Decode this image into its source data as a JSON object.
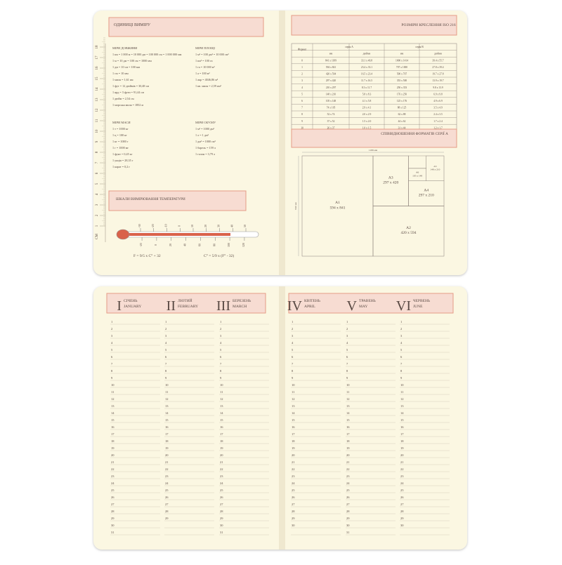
{
  "units": {
    "title": "ОДИНИЦІ ВИМІРУ",
    "sections": [
      {
        "title": "МІРИ ДОВЖИНИ",
        "lines": [
          "1 км = 1 000 м = 10 000 дм = 100 000 см = 1 000 000 мм",
          "1 м = 10 дм = 100 см = 1000 мм",
          "1 дм = 10 см = 100 мм",
          "1 см = 10 мм",
          "1 миля = 1,61 км",
          "1 фут = 12 дюймів = 30,48 см",
          "1 ярд = 3 фути = 91,44 см",
          "1 дюйм = 2,54 см",
          "1 морська миля = 1852 м"
        ]
      },
      {
        "title": "МІРИ ПЛОЩІ",
        "lines": [
          "1 м² = 100 дм² = 10 000 см²",
          "1 км² = 100 га",
          "1 га = 10 000 м²",
          "1 а = 100 м²",
          "1 акр = 4046,86 м²",
          "1 кв. миля = 2,59 км²"
        ]
      },
      {
        "title": "МІРИ МАСИ",
        "lines": [
          "1 т = 1000 кг",
          "1 ц = 100 кг",
          "1 кг = 1000 г",
          "1 г = 1000 мг",
          "1 фунт = 0,45 кг",
          "1 унція = 28,35 г",
          "1 карат = 0,2 г"
        ]
      },
      {
        "title": "МІРИ ОБ'ЄМУ",
        "lines": [
          "1 м³ = 1000 дм³",
          "1 л = 1 дм³",
          "1 дм³ = 1000 см³",
          "1 барель = 159 л",
          "1 галон = 3,79 л"
        ]
      }
    ]
  },
  "ruler": {
    "unit": "CM",
    "numbers": [
      1,
      2,
      3,
      4,
      5,
      6,
      7,
      8,
      9,
      10,
      11,
      12,
      13,
      14,
      15,
      16,
      17,
      18
    ]
  },
  "temperature": {
    "title": "ШКАЛИ ВИМІРЮВАННЯ ТЕМПЕРАТУРИ",
    "celsius": [
      -30,
      -20,
      -10,
      0,
      10,
      20,
      30,
      40,
      50
    ],
    "fahrenheit": [
      -20,
      0,
      20,
      40,
      60,
      80,
      100,
      120
    ],
    "formula_f": "F = 9/5 x C° + 32",
    "formula_c": "C° = 5/9 x (F° - 32)"
  },
  "paper_table": {
    "title": "РОЗМІРИ КРЕСЛЕННЯ ISO 216",
    "header": [
      "Формат",
      "серія A",
      "серія B"
    ],
    "subheader": [
      "мм",
      "дюйми",
      "мм",
      "дюйми"
    ],
    "rows": [
      [
        0,
        "841 x 1189",
        "33.1 x 46.8",
        "1000 x 1414",
        "39.4 x 55.7"
      ],
      [
        1,
        "594 x 841",
        "23.4 x 33.1",
        "707 x 1000",
        "27.8 x 39.4"
      ],
      [
        2,
        "420 x 594",
        "16.5 x 23.4",
        "500 x 707",
        "19.7 x 27.8"
      ],
      [
        3,
        "297 x 420",
        "11.7 x 16.5",
        "353 x 500",
        "13.9 x 19.7"
      ],
      [
        4,
        "210 x 297",
        "8.3 x 11.7",
        "250 x 353",
        "9.8 x 13.9"
      ],
      [
        5,
        "148 x 210",
        "5.8 x 8.3",
        "176 x 250",
        "6.9 x 9.8"
      ],
      [
        6,
        "105 x 148",
        "4.1 x 5.8",
        "125 x 176",
        "4.9 x 6.9"
      ],
      [
        7,
        "74 x 105",
        "2.9 x 4.1",
        "88 x 125",
        "3.5 x 4.9"
      ],
      [
        8,
        "52 x 74",
        "2.0 x 2.9",
        "62 x 88",
        "2.4 x 3.5"
      ],
      [
        9,
        "37 x 52",
        "1.5 x 2.0",
        "44 x 62",
        "1.7 x 2.4"
      ],
      [
        10,
        "26 x 37",
        "1.0 x 1.5",
        "31 x 44",
        "1.2 x 1.7"
      ]
    ]
  },
  "formats": {
    "title": "СПІВВІДНОШЕННЯ ФОРМАТІВ СЕРІЇ A",
    "width_label": "1189 мм",
    "height_label": "841 мм",
    "sheets": [
      {
        "name": "A1",
        "size": "594 x 841"
      },
      {
        "name": "A2",
        "size": "420 x 594"
      },
      {
        "name": "A3",
        "size": "297 x 420"
      },
      {
        "name": "A4",
        "size": "297 x 210"
      },
      {
        "name": "A5",
        "size": "148 x 210"
      },
      {
        "name": "A6",
        "size": "105 x 148"
      }
    ]
  },
  "calendar": {
    "months": [
      {
        "numeral": "I",
        "name": "СІЧЕНЬ",
        "name_en": "JANUARY",
        "days": [
          1,
          2,
          3,
          4,
          5,
          6,
          7,
          8,
          9,
          10,
          11,
          12,
          13,
          14,
          15,
          16,
          17,
          18,
          19,
          20,
          21,
          22,
          23,
          24,
          25,
          26,
          27,
          28,
          29,
          30,
          31
        ]
      },
      {
        "numeral": "II",
        "name": "ЛЮТИЙ",
        "name_en": "FEBRUARY",
        "days": [
          1,
          2,
          3,
          4,
          5,
          6,
          7,
          8,
          9,
          10,
          11,
          12,
          13,
          14,
          15,
          16,
          17,
          18,
          19,
          20,
          21,
          22,
          23,
          24,
          25,
          26,
          27,
          28,
          29
        ]
      },
      {
        "numeral": "III",
        "name": "БЕРЕЗЕНЬ",
        "name_en": "MARCH",
        "days": [
          1,
          2,
          3,
          4,
          5,
          6,
          7,
          8,
          9,
          10,
          11,
          12,
          13,
          14,
          15,
          16,
          17,
          18,
          19,
          20,
          21,
          22,
          23,
          24,
          25,
          26,
          27,
          28,
          29,
          30,
          31
        ]
      },
      {
        "numeral": "IV",
        "name": "КВІТЕНЬ",
        "name_en": "APRIL",
        "days": [
          1,
          2,
          3,
          4,
          5,
          6,
          7,
          8,
          9,
          10,
          11,
          12,
          13,
          14,
          15,
          16,
          17,
          18,
          19,
          20,
          21,
          22,
          23,
          24,
          25,
          26,
          27,
          28,
          29,
          30
        ]
      },
      {
        "numeral": "V",
        "name": "ТРАВЕНЬ",
        "name_en": "MAY",
        "days": [
          1,
          2,
          3,
          4,
          5,
          6,
          7,
          8,
          9,
          10,
          11,
          12,
          13,
          14,
          15,
          16,
          17,
          18,
          19,
          20,
          21,
          22,
          23,
          24,
          25,
          26,
          27,
          28,
          29,
          30,
          31
        ]
      },
      {
        "numeral": "VI",
        "name": "ЧЕРВЕНЬ",
        "name_en": "JUNE",
        "days": [
          1,
          2,
          3,
          4,
          5,
          6,
          7,
          8,
          9,
          10,
          11,
          12,
          13,
          14,
          15,
          16,
          17,
          18,
          19,
          20,
          21,
          22,
          23,
          24,
          25,
          26,
          27,
          28,
          29,
          30
        ]
      }
    ]
  }
}
